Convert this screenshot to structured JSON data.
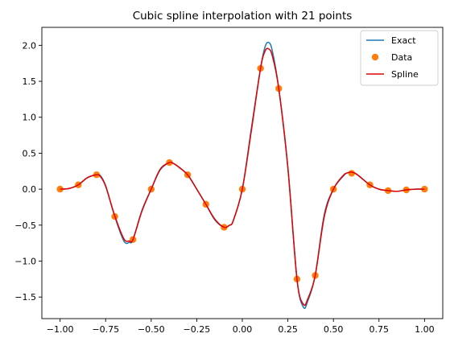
{
  "chart_data": {
    "type": "line",
    "title": "Cubic spline interpolation with 21 points",
    "xlabel": "",
    "ylabel": "",
    "xlim": [
      -1.1,
      1.1
    ],
    "ylim": [
      -1.8,
      2.25
    ],
    "xticks": [
      -1.0,
      -0.75,
      -0.5,
      -0.25,
      0.0,
      0.25,
      0.5,
      0.75,
      1.0
    ],
    "xtick_labels": [
      "−1.00",
      "−0.75",
      "−0.50",
      "−0.25",
      "0.00",
      "0.25",
      "0.50",
      "0.75",
      "1.00"
    ],
    "yticks": [
      -1.5,
      -1.0,
      -0.5,
      0.0,
      0.5,
      1.0,
      1.5,
      2.0
    ],
    "ytick_labels": [
      "−1.5",
      "−1.0",
      "−0.5",
      "0.0",
      "0.5",
      "1.0",
      "1.5",
      "2.0"
    ],
    "grid": false,
    "legend_position": "upper right",
    "series": [
      {
        "name": "Exact",
        "kind": "line",
        "color": "#1f77b4",
        "x": [
          -1.0,
          -0.95,
          -0.9,
          -0.85,
          -0.8,
          -0.78,
          -0.75,
          -0.7,
          -0.65,
          -0.62,
          -0.6,
          -0.55,
          -0.5,
          -0.45,
          -0.4,
          -0.38,
          -0.35,
          -0.3,
          -0.25,
          -0.2,
          -0.15,
          -0.1,
          -0.07,
          -0.05,
          0.0,
          0.05,
          0.1,
          0.125,
          0.145,
          0.165,
          0.2,
          0.25,
          0.3,
          0.335,
          0.36,
          0.4,
          0.45,
          0.5,
          0.55,
          0.58,
          0.62,
          0.7,
          0.75,
          0.8,
          0.85,
          0.9,
          0.95,
          1.0
        ],
        "y": [
          0.0,
          0.01,
          0.06,
          0.16,
          0.2,
          0.19,
          0.05,
          -0.38,
          -0.72,
          -0.74,
          -0.7,
          -0.29,
          0.0,
          0.27,
          0.37,
          0.36,
          0.31,
          0.2,
          0.0,
          -0.21,
          -0.43,
          -0.53,
          -0.5,
          -0.44,
          0.0,
          0.85,
          1.68,
          1.98,
          2.04,
          1.92,
          1.4,
          0.3,
          -1.25,
          -1.64,
          -1.55,
          -1.2,
          -0.35,
          0.0,
          0.17,
          0.23,
          0.22,
          0.06,
          0.0,
          -0.02,
          -0.03,
          -0.01,
          0.0,
          0.0
        ]
      },
      {
        "name": "Data",
        "kind": "scatter",
        "color": "#ff7f0e",
        "x": [
          -1.0,
          -0.9,
          -0.8,
          -0.7,
          -0.6,
          -0.5,
          -0.4,
          -0.3,
          -0.2,
          -0.1,
          0.0,
          0.1,
          0.2,
          0.3,
          0.4,
          0.5,
          0.6,
          0.7,
          0.8,
          0.9,
          1.0
        ],
        "y": [
          0.0,
          0.06,
          0.2,
          -0.38,
          -0.7,
          0.0,
          0.37,
          0.2,
          -0.21,
          -0.53,
          0.0,
          1.68,
          1.4,
          -1.25,
          -1.2,
          0.0,
          0.22,
          0.06,
          -0.02,
          -0.01,
          0.0
        ]
      },
      {
        "name": "Spline",
        "kind": "line",
        "color": "#e00000",
        "x": [
          -1.0,
          -0.95,
          -0.9,
          -0.85,
          -0.8,
          -0.78,
          -0.75,
          -0.7,
          -0.65,
          -0.62,
          -0.6,
          -0.55,
          -0.5,
          -0.45,
          -0.4,
          -0.38,
          -0.35,
          -0.3,
          -0.25,
          -0.2,
          -0.15,
          -0.1,
          -0.07,
          -0.05,
          0.0,
          0.05,
          0.1,
          0.125,
          0.145,
          0.165,
          0.2,
          0.25,
          0.3,
          0.335,
          0.36,
          0.4,
          0.45,
          0.5,
          0.55,
          0.58,
          0.62,
          0.7,
          0.75,
          0.8,
          0.85,
          0.9,
          0.95,
          1.0
        ],
        "y": [
          0.0,
          0.01,
          0.06,
          0.16,
          0.2,
          0.18,
          0.04,
          -0.37,
          -0.69,
          -0.72,
          -0.7,
          -0.3,
          0.0,
          0.28,
          0.37,
          0.36,
          0.31,
          0.2,
          0.0,
          -0.21,
          -0.42,
          -0.53,
          -0.5,
          -0.44,
          0.0,
          0.82,
          1.68,
          1.92,
          1.95,
          1.85,
          1.4,
          0.3,
          -1.25,
          -1.6,
          -1.52,
          -1.2,
          -0.38,
          0.0,
          0.18,
          0.23,
          0.22,
          0.06,
          0.0,
          -0.02,
          -0.03,
          -0.01,
          0.0,
          0.0
        ]
      }
    ]
  }
}
